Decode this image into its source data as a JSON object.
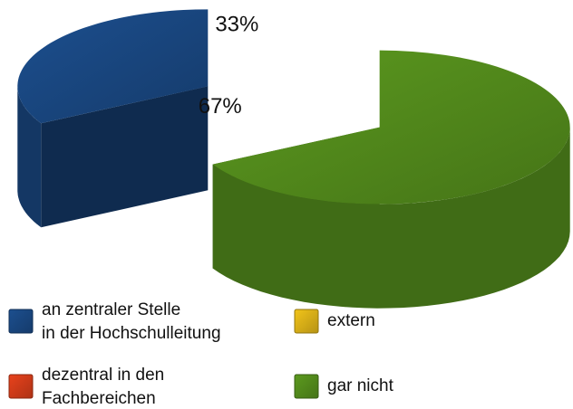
{
  "chart_data": {
    "type": "pie3d",
    "categories": [
      "an zentraler Stelle\nin der Hochschulleitung",
      "dezentral in den\nFachbereichen",
      "extern",
      "gar nicht"
    ],
    "values": [
      33,
      0,
      0,
      67
    ],
    "value_labels": [
      "33%",
      null,
      null,
      "67%"
    ],
    "colors": [
      "#1c4f8f",
      "#e8421c",
      "#f2c41a",
      "#5c9a1f"
    ],
    "legend": "bottom"
  }
}
